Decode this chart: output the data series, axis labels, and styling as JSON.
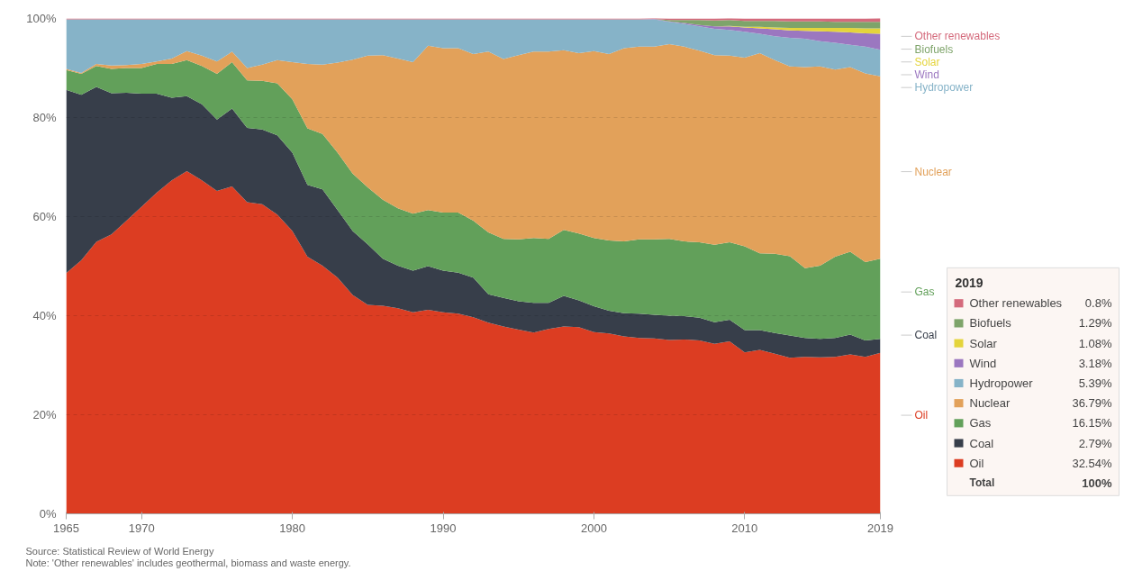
{
  "chart_data": {
    "type": "area",
    "stacked": true,
    "grid": "y",
    "legend": "bottom right",
    "legend_title": "2019",
    "x": [
      1965,
      1966,
      1967,
      1968,
      1969,
      1970,
      1971,
      1972,
      1973,
      1974,
      1975,
      1976,
      1977,
      1978,
      1979,
      1980,
      1981,
      1982,
      1983,
      1984,
      1985,
      1986,
      1987,
      1988,
      1989,
      1990,
      1991,
      1992,
      1993,
      1994,
      1995,
      1996,
      1997,
      1998,
      1999,
      2000,
      2001,
      2002,
      2003,
      2004,
      2005,
      2006,
      2007,
      2008,
      2009,
      2010,
      2011,
      2012,
      2013,
      2014,
      2015,
      2016,
      2017,
      2018,
      2019
    ],
    "xlim": [
      1965,
      2019
    ],
    "xticks": [
      1965,
      1970,
      1980,
      1990,
      2000,
      2010,
      2019
    ],
    "ylim": [
      0,
      100
    ],
    "yticks": [
      {
        "value": 0,
        "label": "0%"
      },
      {
        "value": 20,
        "label": "20%"
      },
      {
        "value": 40,
        "label": "40%"
      },
      {
        "value": 60,
        "label": "60%"
      },
      {
        "value": 80,
        "label": "80%"
      },
      {
        "value": 100,
        "label": "100%"
      }
    ],
    "series": [
      {
        "name": "Oil",
        "color": "#dc3d22",
        "values": [
          48.6,
          51.2,
          54.9,
          56.4,
          59.2,
          62.0,
          64.8,
          67.3,
          69.2,
          67.3,
          65.2,
          66.1,
          62.9,
          62.5,
          60.4,
          57.1,
          51.9,
          50.1,
          47.7,
          44.2,
          42.2,
          42.0,
          41.5,
          40.7,
          41.2,
          40.7,
          40.4,
          39.7,
          38.6,
          37.8,
          37.2,
          36.6,
          37.3,
          37.8,
          37.7,
          36.7,
          36.4,
          35.8,
          35.5,
          35.4,
          35.1,
          35.2,
          35.0,
          34.3,
          34.8,
          32.6,
          33.1,
          32.3,
          31.5,
          31.7,
          31.6,
          31.7,
          32.2,
          31.7,
          32.5
        ]
      },
      {
        "name": "Coal",
        "color": "#373e4a",
        "values": [
          37.0,
          33.4,
          31.3,
          28.5,
          25.8,
          22.8,
          20.0,
          16.7,
          15.1,
          15.4,
          14.4,
          15.7,
          15.0,
          15.1,
          16.0,
          15.8,
          14.5,
          15.4,
          13.6,
          12.9,
          12.2,
          9.5,
          8.6,
          8.4,
          8.8,
          8.4,
          8.3,
          8.0,
          5.7,
          5.8,
          5.7,
          6.0,
          5.3,
          6.2,
          5.4,
          5.2,
          4.6,
          4.7,
          4.9,
          4.8,
          4.9,
          4.7,
          4.6,
          4.4,
          4.4,
          4.5,
          4.0,
          4.2,
          4.5,
          3.8,
          3.7,
          3.8,
          4.0,
          3.3,
          2.8
        ]
      },
      {
        "name": "Gas",
        "color": "#62a05a",
        "values": [
          4.0,
          4.2,
          4.2,
          4.9,
          5.0,
          5.2,
          6.0,
          6.8,
          7.3,
          7.7,
          9.2,
          9.4,
          9.6,
          9.8,
          10.5,
          10.8,
          11.4,
          11.2,
          11.6,
          11.6,
          11.5,
          11.9,
          11.6,
          11.5,
          11.3,
          11.7,
          12.1,
          11.5,
          12.5,
          11.9,
          12.5,
          13.1,
          12.9,
          13.3,
          13.5,
          13.8,
          14.2,
          14.5,
          15.0,
          15.2,
          15.5,
          15.1,
          15.2,
          15.6,
          15.6,
          16.9,
          15.5,
          16.0,
          16.0,
          14.1,
          14.8,
          16.4,
          16.7,
          15.8,
          16.2
        ]
      },
      {
        "name": "Nuclear",
        "color": "#e2a15a",
        "values": [
          0.2,
          0.2,
          0.4,
          0.7,
          0.6,
          0.8,
          0.5,
          1.1,
          1.8,
          2.1,
          2.5,
          2.1,
          2.5,
          3.3,
          4.7,
          7.5,
          13.0,
          14.0,
          18.2,
          23.0,
          26.6,
          29.2,
          30.2,
          30.6,
          33.2,
          33.2,
          33.2,
          33.6,
          36.5,
          36.3,
          37.2,
          37.6,
          37.8,
          36.3,
          36.4,
          37.7,
          37.6,
          39.0,
          38.9,
          38.9,
          39.3,
          39.3,
          38.7,
          38.3,
          37.7,
          38.1,
          40.4,
          39.1,
          38.3,
          40.6,
          40.2,
          37.8,
          37.3,
          38.1,
          36.8
        ]
      },
      {
        "name": "Hydropower",
        "color": "#86b3c8",
        "values": [
          10.0,
          10.8,
          9.0,
          9.3,
          9.2,
          9.0,
          8.5,
          7.9,
          6.4,
          7.3,
          8.5,
          6.5,
          9.8,
          9.1,
          8.2,
          8.6,
          9.0,
          9.1,
          8.7,
          8.1,
          7.3,
          7.2,
          7.9,
          8.6,
          5.3,
          5.8,
          5.8,
          7.0,
          6.5,
          8.0,
          7.2,
          6.5,
          6.5,
          6.2,
          6.8,
          6.4,
          7.0,
          5.8,
          5.5,
          5.5,
          4.5,
          4.6,
          4.9,
          5.3,
          5.2,
          5.2,
          3.9,
          4.8,
          5.8,
          5.7,
          5.1,
          5.4,
          4.5,
          5.4,
          5.4
        ]
      },
      {
        "name": "Wind",
        "color": "#9b77c0",
        "values": [
          0,
          0,
          0,
          0,
          0,
          0,
          0,
          0,
          0,
          0,
          0,
          0,
          0,
          0,
          0,
          0,
          0,
          0,
          0,
          0,
          0,
          0,
          0,
          0,
          0,
          0,
          0,
          0,
          0,
          0,
          0,
          0,
          0,
          0,
          0,
          0,
          0,
          0,
          0,
          0.1,
          0.1,
          0.2,
          0.3,
          0.5,
          0.7,
          0.9,
          1.1,
          1.4,
          1.5,
          1.6,
          2.0,
          2.2,
          2.5,
          2.7,
          3.2
        ]
      },
      {
        "name": "Solar",
        "color": "#e4d43b",
        "values": [
          0,
          0,
          0,
          0,
          0,
          0,
          0,
          0,
          0,
          0,
          0,
          0,
          0,
          0,
          0,
          0,
          0,
          0,
          0,
          0,
          0,
          0,
          0,
          0,
          0,
          0,
          0,
          0,
          0,
          0,
          0,
          0,
          0,
          0,
          0,
          0,
          0,
          0,
          0,
          0,
          0,
          0,
          0,
          0,
          0.1,
          0.1,
          0.3,
          0.4,
          0.5,
          0.6,
          0.7,
          0.8,
          0.9,
          1.0,
          1.1
        ]
      },
      {
        "name": "Biofuels",
        "color": "#7ea46a",
        "values": [
          0,
          0,
          0,
          0,
          0,
          0,
          0,
          0,
          0,
          0,
          0,
          0,
          0,
          0,
          0,
          0,
          0,
          0,
          0,
          0,
          0,
          0,
          0,
          0,
          0,
          0,
          0,
          0,
          0,
          0,
          0,
          0,
          0,
          0,
          0,
          0,
          0,
          0,
          0,
          0,
          0.3,
          0.6,
          1.0,
          1.2,
          1.2,
          1.2,
          1.2,
          1.3,
          1.3,
          1.3,
          1.3,
          1.2,
          1.2,
          1.3,
          1.3
        ]
      },
      {
        "name": "Other renewables",
        "color": "#d46a7c",
        "values": [
          0.2,
          0.2,
          0.2,
          0.2,
          0.2,
          0.2,
          0.2,
          0.2,
          0.2,
          0.2,
          0.2,
          0.2,
          0.2,
          0.2,
          0.2,
          0.2,
          0.2,
          0.2,
          0.2,
          0.2,
          0.2,
          0.2,
          0.2,
          0.2,
          0.2,
          0.2,
          0.2,
          0.2,
          0.2,
          0.2,
          0.2,
          0.2,
          0.2,
          0.2,
          0.2,
          0.2,
          0.2,
          0.2,
          0.2,
          0.2,
          0.3,
          0.3,
          0.3,
          0.4,
          0.4,
          0.5,
          0.5,
          0.5,
          0.6,
          0.6,
          0.6,
          0.7,
          0.7,
          0.7,
          0.8
        ]
      }
    ],
    "annotations": [
      "0.8%",
      "1.29%",
      "1.08%",
      "3.18%",
      "5.39%",
      "36.79%",
      "16.15%",
      "2.79%",
      "32.54%",
      "Total",
      "100%",
      "Source: Statistical Review of World Energy",
      "Note: 'Other renewables' includes geothermal, biomass and waste energy."
    ]
  }
}
